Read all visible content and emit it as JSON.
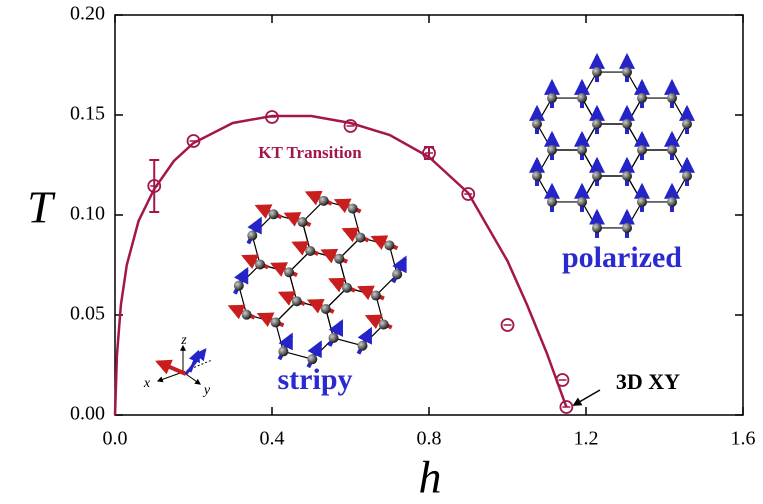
{
  "chart_data": {
    "type": "scatter",
    "series": [
      {
        "color": "#a3164b",
        "x": [
          0.1,
          0.2,
          0.4,
          0.6,
          0.8,
          0.9,
          1.0,
          1.14,
          1.15
        ],
        "values": [
          0.1145,
          0.137,
          0.149,
          0.1445,
          0.131,
          0.1105,
          0.045,
          0.0175,
          0.004
        ],
        "errors": [
          0.013,
          null,
          null,
          null,
          0.003,
          null,
          null,
          null,
          null
        ]
      }
    ],
    "fit": {
      "color": "#a3164b",
      "x": [
        0,
        0.005,
        0.015,
        0.03,
        0.06,
        0.1,
        0.15,
        0.2,
        0.3,
        0.4,
        0.5,
        0.6,
        0.7,
        0.8,
        0.9,
        1.0,
        1.05,
        1.1,
        1.15
      ],
      "values": [
        0,
        0.03,
        0.055,
        0.075,
        0.097,
        0.113,
        0.127,
        0.136,
        0.146,
        0.1495,
        0.1495,
        0.146,
        0.14,
        0.129,
        0.111,
        0.077,
        0.055,
        0.031,
        0.004
      ]
    },
    "xlabel": "h",
    "ylabel": "T",
    "xlim": [
      0,
      1.6
    ],
    "xticks": [
      {
        "value": 0,
        "label": "0.0"
      },
      {
        "value": 0.4,
        "label": "0.4"
      },
      {
        "value": 0.8,
        "label": "0.8"
      },
      {
        "value": 1.2,
        "label": "1.2"
      },
      {
        "value": 1.6,
        "label": "1.6"
      }
    ],
    "ylim": [
      0,
      0.2
    ],
    "yticks": [
      {
        "value": 0,
        "label": "0.00"
      },
      {
        "value": 0.05,
        "label": "0.05"
      },
      {
        "value": 0.1,
        "label": "0.10"
      },
      {
        "value": 0.15,
        "label": "0.15"
      },
      {
        "value": 0.2,
        "label": "0.20"
      }
    ],
    "annotations": {
      "transition": "KT Transition",
      "phase_high": "polarized",
      "phase_low": "stripy",
      "critical_point": "3D XY",
      "inset_axes": {
        "x": "x",
        "y": "y",
        "z": "z"
      }
    }
  }
}
